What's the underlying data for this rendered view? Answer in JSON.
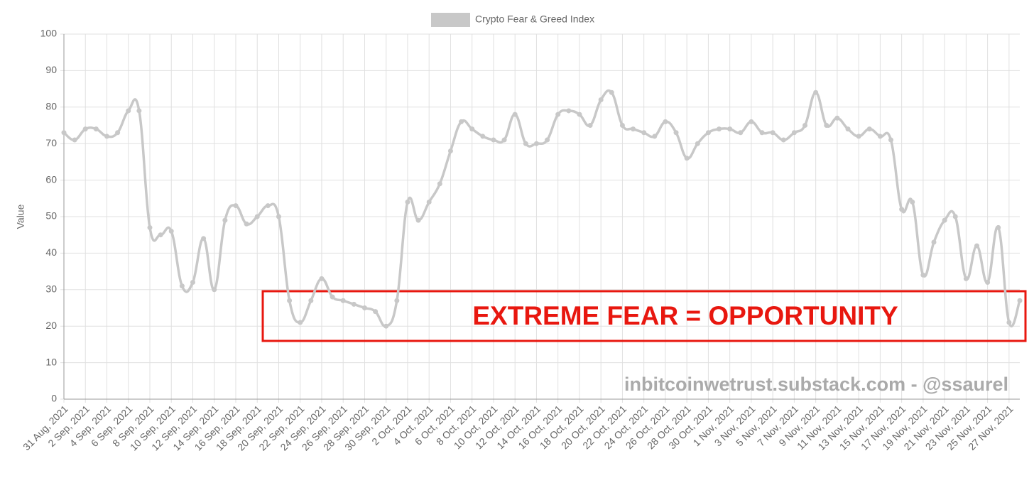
{
  "chart_data": {
    "type": "line",
    "legend": "Crypto Fear & Greed Index",
    "y_label": "Value",
    "annotation": "EXTREME FEAR = OPPORTUNITY",
    "watermark": "inbitcoinwetrust.substack.com - @ssaurel",
    "color": "#c8c8c8",
    "annotation_color": "#e8170f",
    "grid": true,
    "ylim": [
      0,
      100
    ],
    "yticks": [
      0,
      10,
      20,
      30,
      40,
      50,
      60,
      70,
      80,
      90,
      100
    ],
    "categories": [
      "31 Aug, 2021",
      null,
      "2 Sep, 2021",
      null,
      "4 Sep, 2021",
      null,
      "6 Sep, 2021",
      null,
      "8 Sep, 2021",
      null,
      "10 Sep, 2021",
      null,
      "12 Sep, 2021",
      null,
      "14 Sep, 2021",
      null,
      "16 Sep, 2021",
      null,
      "18 Sep, 2021",
      null,
      "20 Sep, 2021",
      null,
      "22 Sep, 2021",
      null,
      "24 Sep, 2021",
      null,
      "26 Sep, 2021",
      null,
      "28 Sep, 2021",
      null,
      "30 Sep, 2021",
      null,
      "2 Oct, 2021",
      null,
      "4 Oct, 2021",
      null,
      "6 Oct, 2021",
      null,
      "8 Oct, 2021",
      null,
      "10 Oct, 2021",
      null,
      "12 Oct, 2021",
      null,
      "14 Oct, 2021",
      null,
      "16 Oct, 2021",
      null,
      "18 Oct, 2021",
      null,
      "20 Oct, 2021",
      null,
      "22 Oct, 2021",
      null,
      "24 Oct, 2021",
      null,
      "26 Oct, 2021",
      null,
      "28 Oct, 2021",
      null,
      "30 Oct, 2021",
      null,
      "1 Nov, 2021",
      null,
      "3 Nov, 2021",
      null,
      "5 Nov, 2021",
      null,
      "7 Nov, 2021",
      null,
      "9 Nov, 2021",
      null,
      "11 Nov, 2021",
      null,
      "13 Nov, 2021",
      null,
      "15 Nov, 2021",
      null,
      "17 Nov, 2021",
      null,
      "19 Nov, 2021",
      null,
      "21 Nov, 2021",
      null,
      "23 Nov, 2021",
      null,
      "25 Nov, 2021",
      null,
      "27 Nov, 2021",
      null
    ],
    "values": [
      73,
      71,
      74,
      74,
      72,
      73,
      79,
      79,
      47,
      45,
      46,
      31,
      32,
      44,
      30,
      49,
      53,
      48,
      50,
      53,
      50,
      27,
      21,
      27,
      33,
      28,
      27,
      26,
      25,
      24,
      20,
      27,
      54,
      49,
      54,
      59,
      68,
      76,
      74,
      72,
      71,
      71,
      78,
      70,
      70,
      71,
      78,
      79,
      78,
      75,
      82,
      84,
      75,
      74,
      73,
      72,
      76,
      73,
      66,
      70,
      73,
      74,
      74,
      73,
      76,
      73,
      73,
      71,
      73,
      75,
      84,
      75,
      77,
      74,
      72,
      74,
      72,
      71,
      52,
      54,
      34,
      43,
      49,
      50,
      33,
      42,
      32,
      47,
      21,
      27
    ]
  }
}
